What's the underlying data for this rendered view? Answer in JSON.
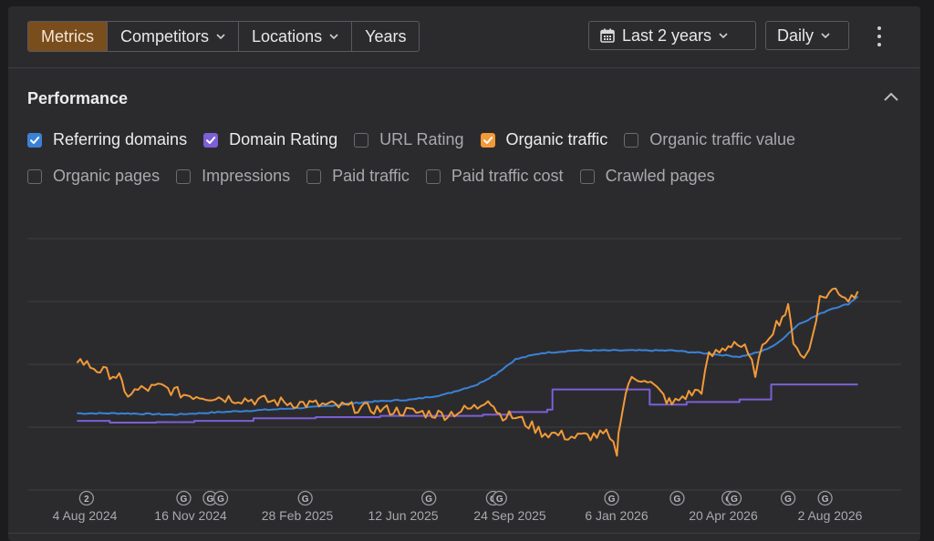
{
  "toolbar": {
    "tabs": [
      {
        "label": "Metrics",
        "active": true,
        "dropdown": false
      },
      {
        "label": "Competitors",
        "active": false,
        "dropdown": true
      },
      {
        "label": "Locations",
        "active": false,
        "dropdown": true
      },
      {
        "label": "Years",
        "active": false,
        "dropdown": false
      }
    ],
    "range_label": "Last 2 years",
    "granularity_label": "Daily",
    "calendar_icon": "calendar-icon",
    "menu_icon": "kebab-menu-icon"
  },
  "section": {
    "title": "Performance",
    "collapse_icon": "chevron-up-icon"
  },
  "metrics": [
    {
      "label": "Referring domains",
      "checked": true,
      "color": "#3b82d6"
    },
    {
      "label": "Domain Rating",
      "checked": true,
      "color": "#7d5fd6"
    },
    {
      "label": "URL Rating",
      "checked": false,
      "color": ""
    },
    {
      "label": "Organic traffic",
      "checked": true,
      "color": "#f29a38"
    },
    {
      "label": "Organic traffic value",
      "checked": false,
      "color": ""
    },
    {
      "label": "Organic pages",
      "checked": false,
      "color": ""
    },
    {
      "label": "Impressions",
      "checked": false,
      "color": ""
    },
    {
      "label": "Paid traffic",
      "checked": false,
      "color": ""
    },
    {
      "label": "Paid traffic cost",
      "checked": false,
      "color": ""
    },
    {
      "label": "Crawled pages",
      "checked": false,
      "color": ""
    }
  ],
  "chart_data": {
    "type": "line",
    "x_tick_labels": [
      "4 Aug 2024",
      "16 Nov 2024",
      "28 Feb 2025",
      "12 Jun 2025",
      "24 Sep 2025",
      "6 Jan 2026",
      "20 Apr 2026",
      "2 Aug 2026"
    ],
    "xlim": [
      "2024-06-15",
      "2026-09-20"
    ],
    "grid": true,
    "y_axis_labels_shown": false,
    "ylim": [
      0,
      100
    ],
    "series": [
      {
        "name": "Referring domains",
        "color": "#3b82d6",
        "x": [
          "2024-08-01",
          "2024-09-15",
          "2024-11-01",
          "2024-12-15",
          "2025-02-01",
          "2025-03-15",
          "2025-05-01",
          "2025-06-15",
          "2025-07-15",
          "2025-08-15",
          "2025-09-01",
          "2025-09-20",
          "2025-10-15",
          "2025-11-15",
          "2025-12-15",
          "2026-01-15",
          "2026-02-15",
          "2026-03-15",
          "2026-04-01",
          "2026-04-20",
          "2026-05-10",
          "2026-05-25",
          "2026-06-15",
          "2026-07-15",
          "2026-08-01",
          "2026-08-10"
        ],
        "values": [
          30.5,
          30.5,
          30,
          31,
          32,
          33,
          35,
          36,
          38,
          42,
          46,
          52,
          54.5,
          55.5,
          55.5,
          55.5,
          55.5,
          54.5,
          53.8,
          53,
          55,
          58,
          66,
          72,
          74,
          77
        ]
      },
      {
        "name": "Domain Rating",
        "color": "#7d5fd6",
        "x": [
          "2024-08-01",
          "2024-09-01",
          "2024-10-15",
          "2024-11-20",
          "2025-01-15",
          "2025-03-15",
          "2025-05-15",
          "2025-07-15",
          "2025-08-20",
          "2025-09-15",
          "2025-10-20",
          "2025-10-25",
          "2026-01-10",
          "2026-01-25",
          "2026-03-01",
          "2026-04-20",
          "2026-05-15",
          "2026-05-20",
          "2026-06-15",
          "2026-08-10"
        ],
        "values": [
          27.5,
          26.8,
          27,
          27.5,
          28.5,
          29,
          29.5,
          29.5,
          30,
          31,
          32,
          40,
          40,
          34,
          35,
          36,
          36,
          42,
          42,
          42
        ]
      },
      {
        "name": "Organic traffic",
        "color": "#f29a38",
        "x": [
          "2024-08-01",
          "2024-08-20",
          "2024-09-10",
          "2024-09-15",
          "2024-10-01",
          "2024-10-20",
          "2024-11-10",
          "2024-12-10",
          "2025-01-10",
          "2025-02-10",
          "2025-03-15",
          "2025-04-15",
          "2025-05-15",
          "2025-06-15",
          "2025-07-15",
          "2025-08-15",
          "2025-08-25",
          "2025-09-05",
          "2025-09-20",
          "2025-10-15",
          "2025-11-15",
          "2025-12-15",
          "2025-12-25",
          "2025-12-28",
          "2026-01-05",
          "2026-01-20",
          "2026-02-10",
          "2026-02-15",
          "2026-02-25",
          "2026-03-15",
          "2026-03-22",
          "2026-04-01",
          "2026-04-15",
          "2026-04-25",
          "2026-05-05",
          "2026-05-15",
          "2026-05-25",
          "2026-06-05",
          "2026-06-10",
          "2026-06-20",
          "2026-06-25",
          "2026-07-05",
          "2026-07-20",
          "2026-08-01",
          "2026-08-10"
        ],
        "values": [
          52,
          48,
          45,
          38,
          40,
          41,
          38,
          37,
          36,
          35,
          34,
          33,
          32,
          31,
          30,
          33,
          37,
          30,
          29,
          23,
          21,
          22,
          15,
          28,
          43,
          45,
          36,
          34,
          37,
          40,
          53,
          55,
          59,
          56,
          47,
          60,
          66,
          72,
          60,
          52,
          56,
          76,
          80,
          76,
          79
        ]
      }
    ],
    "event_markers": [
      {
        "label": "2",
        "date": "2024-08-10"
      },
      {
        "label": "G",
        "date": "2024-11-10"
      },
      {
        "label": "G",
        "date": "2024-12-05"
      },
      {
        "label": "G",
        "date": "2024-12-15"
      },
      {
        "label": "G",
        "date": "2025-03-05"
      },
      {
        "label": "G",
        "date": "2025-06-30"
      },
      {
        "label": "G",
        "date": "2025-08-30"
      },
      {
        "label": "G",
        "date": "2025-09-05"
      },
      {
        "label": "G",
        "date": "2025-12-20"
      },
      {
        "label": "G",
        "date": "2026-02-20"
      },
      {
        "label": "G",
        "date": "2026-04-10"
      },
      {
        "label": "G",
        "date": "2026-04-15"
      },
      {
        "label": "G",
        "date": "2026-06-05"
      },
      {
        "label": "G",
        "date": "2026-07-10"
      }
    ]
  }
}
